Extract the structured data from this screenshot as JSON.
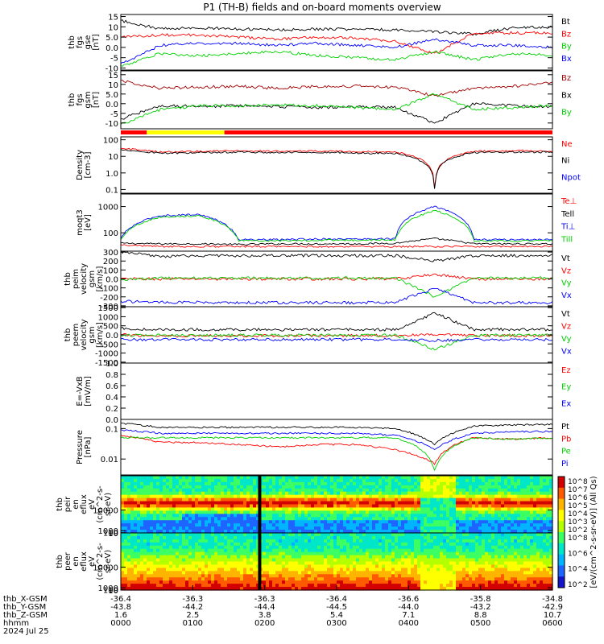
{
  "title": "P1 (TH-B) fields and on-board moments overview",
  "chart_data": [
    {
      "id": "fgs_gse",
      "type": "line",
      "ylabel": [
        "thb",
        "fgs",
        "gse",
        "[nT]"
      ],
      "yticks": [
        -10,
        -5,
        0,
        5,
        10,
        15
      ],
      "ylim": [
        -11,
        16
      ],
      "series": [
        {
          "name": "Bt",
          "color": "#000000",
          "values": [
            13,
            9,
            9.5,
            9,
            8.5,
            9,
            8.8,
            8.5,
            7.5,
            6.5,
            9.5,
            10
          ]
        },
        {
          "name": "Bz",
          "color": "#ff0000",
          "values": [
            5,
            6,
            6,
            5,
            4,
            5,
            4.5,
            3,
            -3,
            7,
            7,
            7
          ]
        },
        {
          "name": "By",
          "color": "#00d000",
          "values": [
            -9,
            -3,
            -4,
            -3,
            -2,
            -4,
            -5,
            -6,
            -2,
            -6,
            -3,
            -4
          ]
        },
        {
          "name": "Bx",
          "color": "#0000ff",
          "values": [
            -8,
            1,
            2,
            2,
            1,
            2,
            1,
            0,
            4,
            1,
            1,
            0
          ]
        }
      ]
    },
    {
      "id": "fgs_gsm",
      "type": "line",
      "ylabel": [
        "thb",
        "fgs",
        "gsm",
        "[nT]"
      ],
      "yticks": [
        -10,
        -5,
        0,
        5,
        10,
        15
      ],
      "ylim": [
        -13,
        17
      ],
      "series": [
        {
          "name": "Bz",
          "color": "#a00000",
          "values": [
            12,
            8,
            8.5,
            9,
            8,
            9,
            9,
            8.5,
            4,
            8,
            9,
            11
          ]
        },
        {
          "name": "Bx",
          "color": "#000000",
          "values": [
            -8,
            -1,
            -1.5,
            -1,
            -1.5,
            -2,
            -1.5,
            -2,
            -10,
            0,
            -1,
            -1.5
          ]
        },
        {
          "name": "By",
          "color": "#00d000",
          "values": [
            -11,
            -3,
            -1,
            -1,
            -0.5,
            -1,
            -2,
            -3,
            5,
            -3,
            -2,
            -1
          ]
        }
      ]
    },
    {
      "id": "density",
      "type": "line",
      "log": true,
      "ylabel": [
        "Density",
        "[cm-3]"
      ],
      "yticks": [
        0.1,
        1.0,
        10.0,
        100.0
      ],
      "ylim": [
        0.06,
        150
      ],
      "series": [
        {
          "name": "Ne",
          "color": "#ff0000",
          "values": [
            30,
            18,
            20,
            22,
            20,
            21,
            19,
            18,
            0.07,
            20,
            22,
            21
          ]
        },
        {
          "name": "Ni",
          "color": "#000000",
          "values": [
            26,
            15,
            17,
            18,
            17,
            18,
            16,
            15,
            0.06,
            17,
            18,
            18
          ]
        },
        {
          "name": "Npot",
          "color": "#0000ff",
          "values": []
        }
      ]
    },
    {
      "id": "temperature",
      "type": "line",
      "log": true,
      "ylabel": [
        "moqt3",
        "[eV]"
      ],
      "yticks": [
        100,
        1000
      ],
      "ylim": [
        20,
        3000
      ],
      "series": [
        {
          "name": "Te⊥",
          "color": "#ff0000",
          "values": [
            35,
            30,
            30,
            30,
            30,
            30,
            30,
            30,
            30,
            30,
            30,
            30
          ]
        },
        {
          "name": "Tell",
          "color": "#000000",
          "values": [
            40,
            38,
            38,
            36,
            38,
            38,
            38,
            40,
            60,
            38,
            38,
            38
          ]
        },
        {
          "name": "Ti⊥",
          "color": "#0000ff",
          "values": [
            60,
            450,
            500,
            55,
            55,
            58,
            58,
            60,
            1000,
            55,
            55,
            55
          ]
        },
        {
          "name": "Till",
          "color": "#00d000",
          "values": [
            55,
            400,
            450,
            50,
            50,
            52,
            52,
            55,
            700,
            50,
            50,
            50
          ]
        }
      ]
    },
    {
      "id": "peim_velocity",
      "type": "line",
      "ylabel": [
        "thb",
        "peim",
        "velocity",
        "gsm",
        "[km/s]"
      ],
      "yticks": [
        -300,
        -200,
        -100,
        0,
        100,
        200,
        300
      ],
      "ylim": [
        -310,
        310
      ],
      "series": [
        {
          "name": "Vt",
          "color": "#000000",
          "values": [
            300,
            250,
            260,
            260,
            260,
            260,
            260,
            260,
            200,
            260,
            260,
            265
          ]
        },
        {
          "name": "Vz",
          "color": "#ff0000",
          "values": [
            0,
            0,
            0,
            0,
            0,
            0,
            0,
            0,
            50,
            0,
            0,
            0
          ]
        },
        {
          "name": "Vy",
          "color": "#00d000",
          "values": [
            -10,
            10,
            10,
            10,
            10,
            10,
            10,
            10,
            -200,
            10,
            10,
            10
          ]
        },
        {
          "name": "Vx",
          "color": "#0000ff",
          "values": [
            -250,
            -260,
            -260,
            -265,
            -265,
            -265,
            -265,
            -260,
            -100,
            -265,
            -265,
            -265
          ]
        }
      ]
    },
    {
      "id": "peem_velocity",
      "type": "line",
      "ylabel": [
        "thb",
        "peem",
        "velocity",
        "gsm",
        "[km/s]"
      ],
      "yticks": [
        -1500,
        -1000,
        -500,
        0,
        500,
        1000,
        1500
      ],
      "ylim": [
        -1550,
        1550
      ],
      "series": [
        {
          "name": "Vt",
          "color": "#000000",
          "values": [
            350,
            280,
            290,
            290,
            280,
            290,
            280,
            290,
            1200,
            290,
            290,
            290
          ]
        },
        {
          "name": "Vz",
          "color": "#ff0000",
          "values": [
            0,
            -50,
            -50,
            -40,
            -40,
            -40,
            -40,
            -40,
            0,
            -40,
            -40,
            -40
          ]
        },
        {
          "name": "Vy",
          "color": "#00d000",
          "values": [
            -30,
            -20,
            -20,
            -20,
            -20,
            -20,
            -20,
            -20,
            -800,
            -20,
            -20,
            -20
          ]
        },
        {
          "name": "Vx",
          "color": "#0000ff",
          "values": [
            -250,
            -260,
            -260,
            -260,
            -260,
            -260,
            -260,
            -260,
            -300,
            -260,
            -260,
            -260
          ]
        }
      ]
    },
    {
      "id": "efield",
      "type": "line",
      "ylabel": [
        "E=-VxB",
        "[mV/m]"
      ],
      "yticks": [
        0.0,
        0.2,
        0.4,
        0.6,
        0.8,
        1.0
      ],
      "ylim": [
        0,
        1.0
      ],
      "series": [
        {
          "name": "Ez",
          "color": "#ff0000",
          "values": []
        },
        {
          "name": "Ey",
          "color": "#00d000",
          "values": []
        },
        {
          "name": "Ex",
          "color": "#0000ff",
          "values": []
        }
      ]
    },
    {
      "id": "pressure",
      "type": "line",
      "log": true,
      "ylabel": [
        "Pressure",
        "[nPa]"
      ],
      "yticks": [
        0.01,
        0.1
      ],
      "ylim": [
        0.003,
        0.2
      ],
      "series": [
        {
          "name": "Pt",
          "color": "#000000",
          "values": [
            0.15,
            0.11,
            0.11,
            0.11,
            0.11,
            0.11,
            0.11,
            0.1,
            0.03,
            0.12,
            0.13,
            0.14
          ]
        },
        {
          "name": "Pb",
          "color": "#ff0000",
          "values": [
            0.06,
            0.035,
            0.035,
            0.03,
            0.025,
            0.03,
            0.03,
            0.02,
            0.007,
            0.05,
            0.045,
            0.05
          ]
        },
        {
          "name": "Pe",
          "color": "#00d000",
          "values": [
            0.05,
            0.05,
            0.05,
            0.05,
            0.05,
            0.05,
            0.05,
            0.05,
            0.004,
            0.05,
            0.045,
            0.05
          ]
        },
        {
          "name": "Pi",
          "color": "#0000ff",
          "values": [
            0.09,
            0.07,
            0.07,
            0.07,
            0.07,
            0.07,
            0.07,
            0.06,
            0.02,
            0.07,
            0.08,
            0.08
          ]
        }
      ]
    },
    {
      "id": "peir_spectrogram",
      "type": "heatmap",
      "ylabel": [
        "thb",
        "peir",
        "en",
        "eflux",
        "eV",
        "(cm^2-s-",
        "sr-eV)"
      ],
      "yticks": [
        10,
        100,
        1000,
        10000
      ],
      "ylim": [
        5,
        25000
      ]
    },
    {
      "id": "peer_spectrogram",
      "type": "heatmap",
      "ylabel": [
        "thb",
        "peer",
        "en",
        "eflux",
        "eV",
        "(cm^2-s-",
        "sr-eV)"
      ],
      "yticks": [
        10,
        100,
        1000,
        10000
      ],
      "ylim": [
        5,
        25000
      ]
    }
  ],
  "colorbar": {
    "label": "[eV/(cm^2-s-sr-eV)] (All Qs)",
    "upper_ticks": [
      "10^8",
      "10^7",
      "10^6",
      "10^5",
      "10^4",
      "10^3",
      "10^2"
    ],
    "lower_ticks": [
      "10^8",
      "10^6",
      "10^4",
      "10^2"
    ]
  },
  "xaxis": {
    "rows": [
      {
        "label": "thb_X-GSM",
        "values": [
          "-36.4",
          "-36.3",
          "-36.3",
          "-36.4",
          "-36.6",
          "-35.8",
          "-34.8"
        ]
      },
      {
        "label": "thb_Y-GSM",
        "values": [
          "-43.8",
          "-44.2",
          "-44.4",
          "-44.5",
          "-44.0",
          "-43.2",
          "-42.9"
        ]
      },
      {
        "label": "thb_Z-GSM",
        "values": [
          "1.6",
          "2.5",
          "3.8",
          "5.4",
          "7.1",
          "8.8",
          "10.7"
        ]
      },
      {
        "label": "hhmm",
        "values": [
          "0000",
          "0100",
          "0200",
          "0300",
          "0400",
          "0500",
          "0600"
        ]
      }
    ],
    "date": "2024 Jul 25"
  }
}
